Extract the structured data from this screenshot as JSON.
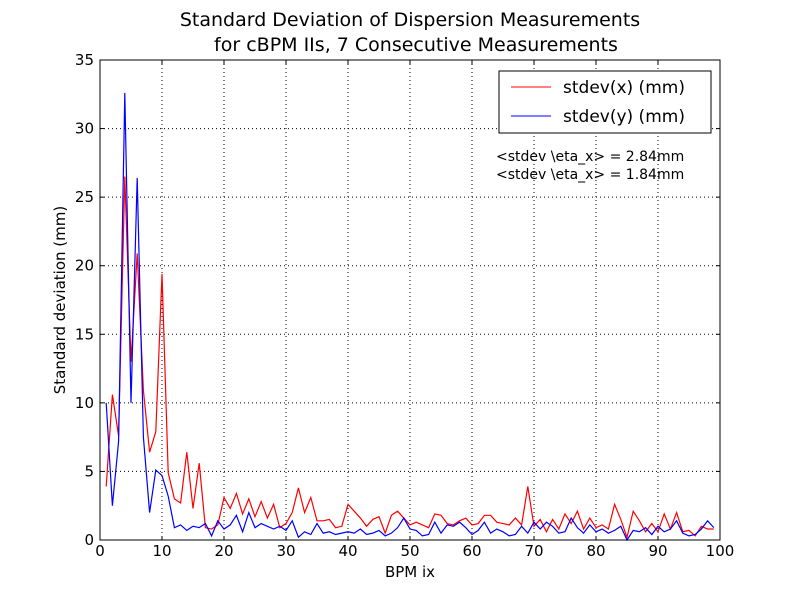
{
  "chart_data": {
    "type": "line",
    "title_line1": "Standard Deviation of Dispersion Measurements",
    "title_line2": "for cBPM IIs, 7 Consecutive Measurements",
    "xlabel": "BPM ix",
    "ylabel": "Standard deviation (mm)",
    "xlim": [
      0,
      100
    ],
    "ylim": [
      0,
      35
    ],
    "xticks": [
      0,
      10,
      20,
      30,
      40,
      50,
      60,
      70,
      80,
      90,
      100
    ],
    "yticks": [
      0,
      5,
      10,
      15,
      20,
      25,
      30,
      35
    ],
    "grid": true,
    "legend_position": "top-right",
    "annotations": [
      "<stdev \\eta_x> = 2.84mm",
      "<stdev \\eta_x> = 1.84mm"
    ],
    "series": [
      {
        "name": "stdev(x) (mm)",
        "color": "#ff0000",
        "x": [
          1,
          2,
          3,
          4,
          5,
          6,
          7,
          8,
          9,
          10,
          11,
          12,
          13,
          14,
          15,
          16,
          17,
          18,
          19,
          20,
          21,
          22,
          23,
          24,
          25,
          26,
          27,
          28,
          29,
          30,
          31,
          32,
          33,
          34,
          35,
          36,
          37,
          38,
          39,
          40,
          41,
          42,
          43,
          44,
          45,
          46,
          47,
          48,
          49,
          50,
          51,
          52,
          53,
          54,
          55,
          56,
          57,
          58,
          59,
          60,
          61,
          62,
          63,
          64,
          65,
          66,
          67,
          68,
          69,
          70,
          71,
          72,
          73,
          74,
          75,
          76,
          77,
          78,
          79,
          80,
          81,
          82,
          83,
          84,
          85,
          86,
          87,
          88,
          89,
          90,
          91,
          92,
          93,
          94,
          95,
          96,
          97,
          98,
          99
        ],
        "values": [
          3.9,
          10.6,
          7.6,
          26.5,
          13.0,
          20.9,
          10.9,
          6.4,
          7.9,
          19.4,
          4.9,
          3.0,
          2.7,
          6.4,
          2.3,
          5.6,
          0.9,
          0.8,
          1.1,
          3.1,
          2.3,
          3.4,
          1.9,
          3.0,
          1.7,
          2.8,
          1.6,
          2.6,
          0.9,
          1.2,
          2.0,
          3.8,
          2.0,
          3.1,
          1.4,
          1.4,
          1.5,
          0.9,
          1.0,
          2.6,
          2.1,
          1.6,
          1.0,
          1.5,
          1.7,
          0.5,
          1.8,
          2.1,
          1.6,
          1.1,
          1.3,
          1.1,
          0.9,
          1.9,
          1.8,
          1.2,
          1.1,
          1.4,
          1.6,
          1.1,
          1.2,
          1.8,
          1.8,
          1.3,
          1.2,
          1.1,
          1.6,
          1.1,
          3.9,
          1.0,
          1.5,
          0.6,
          1.5,
          0.8,
          1.9,
          1.2,
          2.1,
          0.8,
          1.6,
          0.9,
          1.1,
          0.8,
          2.6,
          1.5,
          0.2,
          2.1,
          1.4,
          0.6,
          1.2,
          0.6,
          1.9,
          0.8,
          2.0,
          0.6,
          0.7,
          0.3,
          1.0,
          0.8,
          0.8
        ]
      },
      {
        "name": "stdev(y) (mm)",
        "color": "#0000ff",
        "x": [
          1,
          2,
          3,
          4,
          5,
          6,
          7,
          8,
          9,
          10,
          11,
          12,
          13,
          14,
          15,
          16,
          17,
          18,
          19,
          20,
          21,
          22,
          23,
          24,
          25,
          26,
          27,
          28,
          29,
          30,
          31,
          32,
          33,
          34,
          35,
          36,
          37,
          38,
          39,
          40,
          41,
          42,
          43,
          44,
          45,
          46,
          47,
          48,
          49,
          50,
          51,
          52,
          53,
          54,
          55,
          56,
          57,
          58,
          59,
          60,
          61,
          62,
          63,
          64,
          65,
          66,
          67,
          68,
          69,
          70,
          71,
          72,
          73,
          74,
          75,
          76,
          77,
          78,
          79,
          80,
          81,
          82,
          83,
          84,
          85,
          86,
          87,
          88,
          89,
          90,
          91,
          92,
          93,
          94,
          95,
          96,
          97,
          98,
          99
        ],
        "values": [
          10.0,
          2.5,
          7.2,
          32.6,
          10.0,
          26.4,
          7.5,
          2.0,
          5.1,
          4.7,
          3.2,
          0.9,
          1.1,
          0.7,
          1.0,
          0.9,
          1.2,
          0.3,
          1.4,
          0.8,
          1.1,
          1.8,
          0.6,
          2.0,
          0.9,
          1.2,
          1.0,
          0.8,
          1.0,
          0.7,
          1.4,
          0.2,
          0.6,
          0.4,
          1.2,
          0.5,
          0.6,
          0.4,
          0.5,
          0.6,
          0.5,
          0.8,
          0.4,
          0.5,
          0.7,
          0.3,
          0.5,
          0.9,
          1.6,
          0.8,
          0.7,
          0.3,
          0.4,
          1.3,
          0.5,
          1.1,
          1.0,
          1.3,
          0.9,
          0.4,
          0.7,
          1.3,
          0.5,
          0.8,
          0.6,
          0.3,
          0.4,
          1.0,
          0.5,
          1.3,
          0.8,
          1.3,
          1.0,
          0.5,
          0.6,
          1.6,
          0.9,
          0.5,
          1.1,
          0.6,
          0.8,
          0.5,
          0.7,
          1.0,
          0.0,
          0.7,
          0.6,
          0.9,
          0.4,
          1.0,
          0.6,
          0.8,
          1.4,
          0.5,
          0.3,
          0.4,
          0.8,
          1.4,
          0.9
        ]
      }
    ]
  }
}
